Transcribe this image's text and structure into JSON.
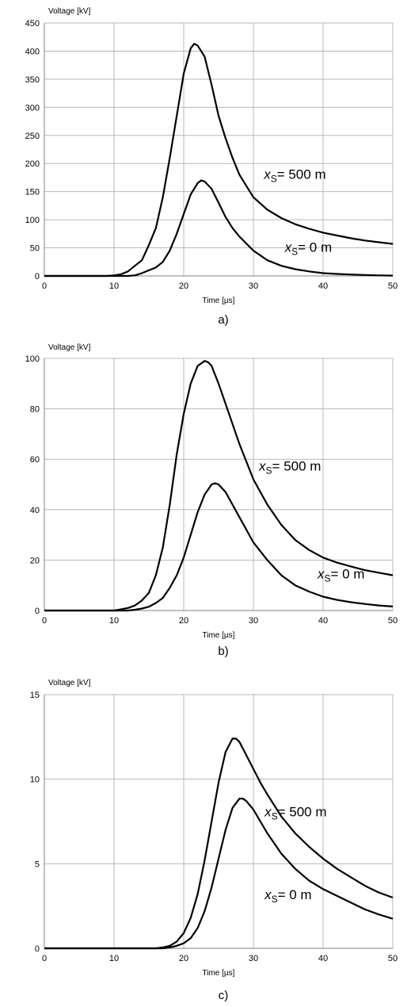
{
  "chart_data": [
    {
      "type": "line",
      "caption": "a)",
      "ylabel": "Voltage [kV]",
      "xlabel": "Time [µs]",
      "xlim": [
        0,
        50
      ],
      "ylim": [
        0,
        450
      ],
      "xticks": [
        0,
        10,
        20,
        30,
        40,
        50
      ],
      "yticks": [
        0,
        50,
        100,
        150,
        200,
        250,
        300,
        350,
        400,
        450
      ],
      "grid": true,
      "series": [
        {
          "name": "xS = 500 m",
          "label_parts": [
            "x",
            "S",
            "= 500 m"
          ],
          "label_pos": [
            31.5,
            173
          ],
          "x": [
            0,
            9,
            10,
            11,
            12,
            13,
            14,
            15,
            16,
            17,
            18,
            19,
            20,
            21,
            21.5,
            22,
            23,
            24,
            25,
            26,
            27,
            28,
            30,
            32,
            34,
            36,
            38,
            40,
            42,
            44,
            46,
            48,
            50
          ],
          "y": [
            0,
            0,
            1,
            3,
            8,
            18,
            28,
            55,
            85,
            140,
            210,
            285,
            360,
            405,
            413,
            410,
            390,
            340,
            285,
            245,
            210,
            180,
            140,
            118,
            103,
            92,
            84,
            77,
            72,
            67,
            63,
            60,
            57
          ]
        },
        {
          "name": "xS = 0 m",
          "label_parts": [
            "x",
            "S",
            "= 0 m"
          ],
          "label_pos": [
            34.5,
            43
          ],
          "x": [
            0,
            12,
            13,
            14,
            15,
            16,
            17,
            18,
            19,
            20,
            21,
            22,
            22.5,
            23,
            24,
            25,
            26,
            27,
            28,
            30,
            32,
            34,
            36,
            38,
            40,
            42,
            44,
            46,
            48,
            50
          ],
          "y": [
            0,
            0,
            1,
            5,
            10,
            15,
            25,
            45,
            75,
            110,
            145,
            165,
            170,
            168,
            155,
            130,
            105,
            85,
            70,
            45,
            28,
            18,
            12,
            8,
            5,
            3.5,
            2.5,
            1.7,
            1,
            0.5
          ]
        }
      ]
    },
    {
      "type": "line",
      "caption": "b)",
      "ylabel": "Voltage [kV]",
      "xlabel": "Time [µs]",
      "xlim": [
        0,
        50
      ],
      "ylim": [
        0,
        100
      ],
      "xticks": [
        0,
        10,
        20,
        30,
        40,
        50
      ],
      "yticks": [
        0,
        20,
        40,
        60,
        80,
        100
      ],
      "grid": true,
      "series": [
        {
          "name": "xS = 500 m",
          "label_parts": [
            "x",
            "S",
            "= 500 m"
          ],
          "label_pos": [
            30.8,
            55.5
          ],
          "x": [
            0,
            10,
            11,
            12,
            13,
            14,
            15,
            16,
            17,
            18,
            19,
            20,
            21,
            22,
            23,
            23.5,
            24,
            25,
            26,
            27,
            28,
            30,
            32,
            34,
            36,
            38,
            40,
            42,
            44,
            46,
            48,
            50
          ],
          "y": [
            0,
            0,
            0.5,
            1,
            2,
            4,
            7,
            14,
            25,
            42,
            62,
            78,
            90,
            97,
            99,
            98.5,
            97,
            90,
            82,
            74,
            66,
            52,
            42,
            34,
            28,
            24,
            21,
            19,
            17.5,
            16,
            15,
            14
          ]
        },
        {
          "name": "xS = 0 m",
          "label_parts": [
            "x",
            "S",
            "= 0 m"
          ],
          "label_pos": [
            39.2,
            12.8
          ],
          "x": [
            0,
            12,
            13,
            14,
            15,
            16,
            17,
            18,
            19,
            20,
            21,
            22,
            23,
            24,
            24.5,
            25,
            26,
            27,
            28,
            30,
            32,
            34,
            36,
            38,
            40,
            42,
            44,
            46,
            48,
            50
          ],
          "y": [
            0,
            0,
            0.3,
            0.8,
            1.5,
            3,
            5,
            9,
            14,
            21,
            30,
            39,
            46,
            50,
            50.5,
            50,
            47,
            42,
            37,
            27,
            20,
            14,
            10,
            7.5,
            5.5,
            4.2,
            3.3,
            2.6,
            2,
            1.6
          ]
        }
      ]
    },
    {
      "type": "line",
      "caption": "c)",
      "ylabel": "Voltage [kV]",
      "xlabel": "Time [µs]",
      "xlim": [
        0,
        50
      ],
      "ylim": [
        0,
        15
      ],
      "xticks": [
        0,
        10,
        20,
        30,
        40,
        50
      ],
      "yticks": [
        0,
        5,
        10,
        15
      ],
      "grid": true,
      "series": [
        {
          "name": "xS = 500 m",
          "label_parts": [
            "x",
            "S",
            "= 500 m"
          ],
          "label_pos": [
            31.6,
            7.8
          ],
          "x": [
            0,
            16,
            17,
            18,
            19,
            20,
            21,
            22,
            23,
            24,
            25,
            26,
            27,
            27.5,
            28,
            29,
            30,
            31,
            32,
            34,
            36,
            38,
            40,
            42,
            44,
            46,
            48,
            50
          ],
          "y": [
            0,
            0,
            0.05,
            0.15,
            0.4,
            0.9,
            1.8,
            3.2,
            5.2,
            7.5,
            9.8,
            11.6,
            12.4,
            12.4,
            12.2,
            11.4,
            10.6,
            9.8,
            9.1,
            7.8,
            6.8,
            6.0,
            5.3,
            4.7,
            4.2,
            3.7,
            3.3,
            3.0
          ]
        },
        {
          "name": "xS = 0 m",
          "label_parts": [
            "x",
            "S",
            "= 0 m"
          ],
          "label_pos": [
            31.6,
            2.9
          ],
          "x": [
            0,
            17,
            18,
            19,
            20,
            21,
            22,
            23,
            24,
            25,
            26,
            27,
            28,
            28.5,
            29,
            30,
            31,
            32,
            34,
            36,
            38,
            40,
            42,
            44,
            46,
            48,
            50
          ],
          "y": [
            0,
            0,
            0.05,
            0.15,
            0.3,
            0.6,
            1.2,
            2.2,
            3.6,
            5.3,
            7.0,
            8.3,
            8.85,
            8.85,
            8.7,
            8.2,
            7.5,
            6.8,
            5.6,
            4.7,
            4.0,
            3.5,
            3.1,
            2.7,
            2.3,
            2.0,
            1.75
          ]
        }
      ]
    }
  ]
}
